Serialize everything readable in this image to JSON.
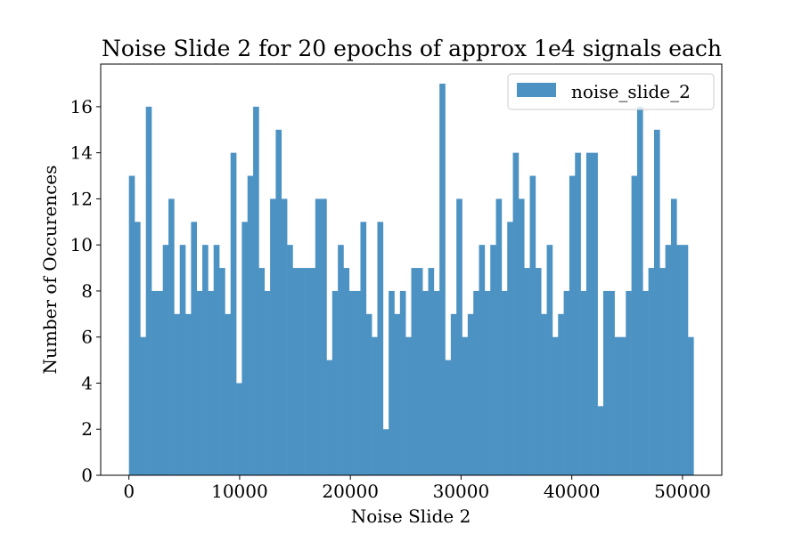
{
  "chart_data": {
    "type": "bar",
    "title": "Noise Slide 2 for 20 epochs of approx 1e4 signals each",
    "xlabel": "Noise Slide 2",
    "ylabel": "Number of Occurences",
    "legend": {
      "label": "noise_slide_2",
      "placement": "top-right"
    },
    "bar_color": "#4c92c3",
    "grid": false,
    "xlim": [
      -2550,
      53550
    ],
    "ylim": [
      0,
      17.85
    ],
    "x_ticks": [
      0,
      10000,
      20000,
      30000,
      40000,
      50000
    ],
    "x_tick_labels": [
      "0",
      "10000",
      "20000",
      "30000",
      "40000",
      "50000"
    ],
    "y_ticks": [
      0,
      2,
      4,
      6,
      8,
      10,
      12,
      14,
      16
    ],
    "y_tick_labels": [
      "0",
      "2",
      "4",
      "6",
      "8",
      "10",
      "12",
      "14",
      "16"
    ],
    "bin_start": 0,
    "bin_end": 51000,
    "counts": [
      13,
      11,
      6,
      16,
      8,
      8,
      10,
      12,
      7,
      10,
      7,
      11,
      8,
      10,
      8,
      10,
      9,
      7,
      14,
      4,
      11,
      13,
      16,
      9,
      8,
      12,
      15,
      12,
      10,
      9,
      9,
      9,
      9,
      12,
      12,
      5,
      8,
      10,
      9,
      8,
      8,
      11,
      7,
      6,
      11,
      2,
      8,
      7,
      8,
      6,
      9,
      9,
      8,
      9,
      8,
      17,
      5,
      7,
      12,
      6,
      7,
      8,
      10,
      8,
      10,
      12,
      8,
      11,
      14,
      12,
      9,
      13,
      9,
      7,
      10,
      6,
      7,
      8,
      13,
      14,
      8,
      14,
      14,
      3,
      8,
      8,
      6,
      6,
      8,
      13,
      16,
      8,
      9,
      15,
      9,
      10,
      12,
      10,
      10,
      6
    ]
  }
}
